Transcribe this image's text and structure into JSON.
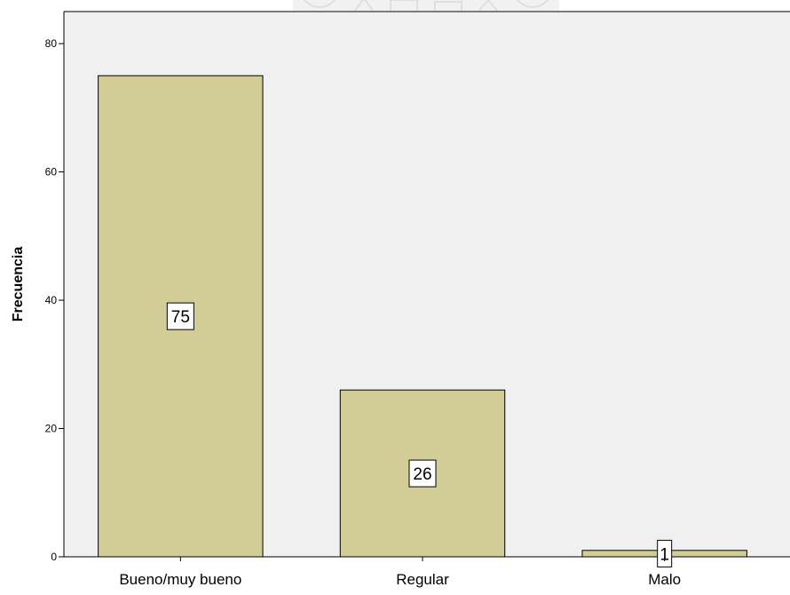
{
  "chart_data": {
    "type": "bar",
    "title": "",
    "xlabel": "",
    "ylabel": "Frecuencia",
    "categories": [
      "Bueno/muy bueno",
      "Regular",
      "Malo"
    ],
    "values": [
      75,
      26,
      1
    ],
    "data_labels": [
      "75",
      "26",
      "1"
    ],
    "ylim": [
      0,
      85
    ],
    "yticks": [
      0,
      20,
      40,
      60,
      80
    ],
    "ytick_labels": [
      "0",
      "20",
      "40",
      "60",
      "80"
    ],
    "grid": false,
    "legend": "none",
    "colors": {
      "bar_fill": "#d2cc96",
      "bar_stroke": "#000000",
      "plot_background": "#f0f0f0",
      "watermark": "#e6e6e6"
    }
  }
}
